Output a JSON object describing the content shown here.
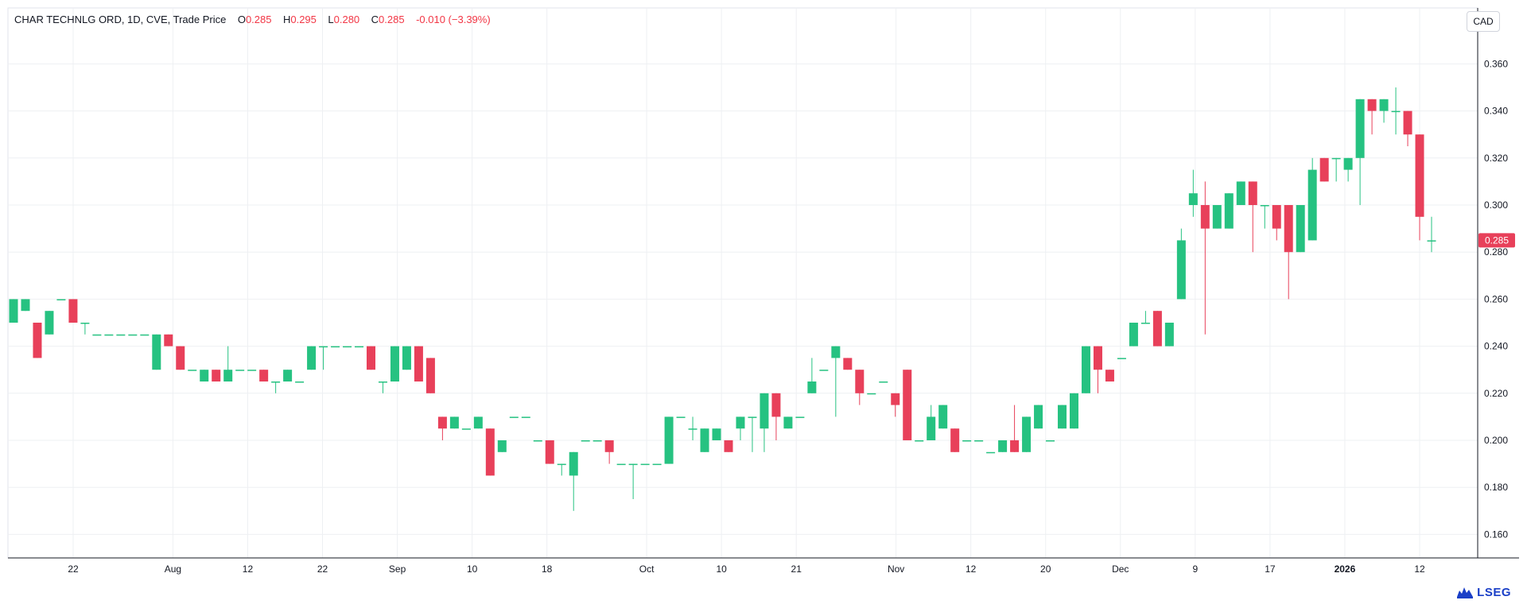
{
  "legend": {
    "symbol": "CHAR TECHNLG ORD, 1D, CVE, Trade Price",
    "open_label": "O",
    "open": "0.285",
    "high_label": "H",
    "high": "0.295",
    "low_label": "L",
    "low": "0.280",
    "close_label": "C",
    "close": "0.285",
    "change": "-0.010 (−3.39%)"
  },
  "currency": "CAD",
  "brand": "LSEG",
  "colors": {
    "up": "#26c281",
    "down": "#e8405a",
    "grid": "#eef0f3",
    "axis": "#131722",
    "label_bg": "#e8405a"
  },
  "chart_data": {
    "type": "candlestick",
    "ylim": [
      0.15,
      0.37
    ],
    "y_ticks": [
      "0.160",
      "0.180",
      "0.200",
      "0.220",
      "0.240",
      "0.260",
      "0.280",
      "0.300",
      "0.320",
      "0.340",
      "0.360"
    ],
    "x_ticks": [
      {
        "label": "22",
        "index": 3
      },
      {
        "label": "Aug",
        "index": 7
      },
      {
        "label": "12",
        "index": 10
      },
      {
        "label": "22",
        "index": 13
      },
      {
        "label": "Sep",
        "index": 16
      },
      {
        "label": "10",
        "index": 19
      },
      {
        "label": "18",
        "index": 22
      },
      {
        "label": "Oct",
        "index": 26
      },
      {
        "label": "10",
        "index": 29
      },
      {
        "label": "21",
        "index": 32
      },
      {
        "label": "Nov",
        "index": 36
      },
      {
        "label": "12",
        "index": 39
      },
      {
        "label": "20",
        "index": 42
      },
      {
        "label": "Dec",
        "index": 45
      },
      {
        "label": "9",
        "index": 48
      },
      {
        "label": "17",
        "index": 51
      },
      {
        "label": "2026",
        "index": 54,
        "bold": true
      },
      {
        "label": "12",
        "index": 57
      }
    ],
    "candles": [
      [
        0.25,
        0.26,
        0.25,
        0.26
      ],
      [
        0.255,
        0.26,
        0.255,
        0.26
      ],
      [
        0.25,
        0.25,
        0.235,
        0.235
      ],
      [
        0.245,
        0.255,
        0.245,
        0.255
      ],
      [
        0.26,
        0.26,
        0.26,
        0.26
      ],
      [
        0.26,
        0.26,
        0.25,
        0.25
      ],
      [
        0.25,
        0.25,
        0.245,
        0.25
      ],
      [
        0.245,
        0.245,
        0.245,
        0.245
      ],
      [
        0.245,
        0.245,
        0.245,
        0.245
      ],
      [
        0.245,
        0.245,
        0.245,
        0.245
      ],
      [
        0.245,
        0.245,
        0.245,
        0.245
      ],
      [
        0.245,
        0.245,
        0.245,
        0.245
      ],
      [
        0.23,
        0.245,
        0.23,
        0.245
      ],
      [
        0.245,
        0.245,
        0.24,
        0.24
      ],
      [
        0.24,
        0.24,
        0.23,
        0.23
      ],
      [
        0.23,
        0.23,
        0.23,
        0.23
      ],
      [
        0.225,
        0.23,
        0.225,
        0.23
      ],
      [
        0.23,
        0.23,
        0.225,
        0.225
      ],
      [
        0.225,
        0.24,
        0.225,
        0.23
      ],
      [
        0.23,
        0.23,
        0.23,
        0.23
      ],
      [
        0.23,
        0.23,
        0.23,
        0.23
      ],
      [
        0.23,
        0.23,
        0.225,
        0.225
      ],
      [
        0.225,
        0.225,
        0.22,
        0.225
      ],
      [
        0.225,
        0.23,
        0.225,
        0.23
      ],
      [
        0.225,
        0.225,
        0.225,
        0.225
      ],
      [
        0.23,
        0.24,
        0.23,
        0.24
      ],
      [
        0.24,
        0.24,
        0.23,
        0.24
      ],
      [
        0.24,
        0.24,
        0.24,
        0.24
      ],
      [
        0.24,
        0.24,
        0.24,
        0.24
      ],
      [
        0.24,
        0.24,
        0.24,
        0.24
      ],
      [
        0.24,
        0.24,
        0.23,
        0.23
      ],
      [
        0.225,
        0.225,
        0.22,
        0.225
      ],
      [
        0.225,
        0.24,
        0.225,
        0.24
      ],
      [
        0.23,
        0.24,
        0.23,
        0.24
      ],
      [
        0.24,
        0.24,
        0.225,
        0.225
      ],
      [
        0.235,
        0.235,
        0.22,
        0.22
      ],
      [
        0.21,
        0.21,
        0.2,
        0.205
      ],
      [
        0.205,
        0.21,
        0.205,
        0.21
      ],
      [
        0.205,
        0.205,
        0.205,
        0.205
      ],
      [
        0.205,
        0.21,
        0.205,
        0.21
      ],
      [
        0.205,
        0.205,
        0.185,
        0.185
      ],
      [
        0.195,
        0.2,
        0.195,
        0.2
      ],
      [
        0.21,
        0.21,
        0.21,
        0.21
      ],
      [
        0.21,
        0.21,
        0.21,
        0.21
      ],
      [
        0.2,
        0.2,
        0.2,
        0.2
      ],
      [
        0.2,
        0.2,
        0.19,
        0.19
      ],
      [
        0.19,
        0.19,
        0.185,
        0.19
      ],
      [
        0.185,
        0.195,
        0.17,
        0.195
      ],
      [
        0.2,
        0.2,
        0.2,
        0.2
      ],
      [
        0.2,
        0.2,
        0.2,
        0.2
      ],
      [
        0.2,
        0.2,
        0.19,
        0.195
      ],
      [
        0.19,
        0.19,
        0.19,
        0.19
      ],
      [
        0.19,
        0.19,
        0.175,
        0.19
      ],
      [
        0.19,
        0.19,
        0.19,
        0.19
      ],
      [
        0.19,
        0.19,
        0.19,
        0.19
      ],
      [
        0.19,
        0.21,
        0.19,
        0.21
      ],
      [
        0.21,
        0.21,
        0.21,
        0.21
      ],
      [
        0.205,
        0.21,
        0.2,
        0.205
      ],
      [
        0.195,
        0.205,
        0.195,
        0.205
      ],
      [
        0.2,
        0.205,
        0.2,
        0.205
      ],
      [
        0.2,
        0.2,
        0.195,
        0.195
      ],
      [
        0.205,
        0.21,
        0.2,
        0.21
      ],
      [
        0.21,
        0.21,
        0.195,
        0.21
      ],
      [
        0.205,
        0.22,
        0.195,
        0.22
      ],
      [
        0.22,
        0.22,
        0.2,
        0.21
      ],
      [
        0.205,
        0.21,
        0.205,
        0.21
      ],
      [
        0.21,
        0.21,
        0.21,
        0.21
      ],
      [
        0.22,
        0.235,
        0.22,
        0.225
      ],
      [
        0.23,
        0.23,
        0.23,
        0.23
      ],
      [
        0.235,
        0.24,
        0.21,
        0.24
      ],
      [
        0.235,
        0.235,
        0.23,
        0.23
      ],
      [
        0.23,
        0.23,
        0.215,
        0.22
      ],
      [
        0.22,
        0.22,
        0.22,
        0.22
      ],
      [
        0.225,
        0.225,
        0.225,
        0.225
      ],
      [
        0.22,
        0.22,
        0.21,
        0.215
      ],
      [
        0.23,
        0.23,
        0.2,
        0.2
      ],
      [
        0.2,
        0.2,
        0.2,
        0.2
      ],
      [
        0.2,
        0.215,
        0.2,
        0.21
      ],
      [
        0.205,
        0.215,
        0.205,
        0.215
      ],
      [
        0.205,
        0.205,
        0.195,
        0.195
      ],
      [
        0.2,
        0.2,
        0.2,
        0.2
      ],
      [
        0.2,
        0.2,
        0.2,
        0.2
      ],
      [
        0.195,
        0.195,
        0.195,
        0.195
      ],
      [
        0.195,
        0.2,
        0.195,
        0.2
      ],
      [
        0.2,
        0.215,
        0.195,
        0.195
      ],
      [
        0.195,
        0.21,
        0.195,
        0.21
      ],
      [
        0.205,
        0.215,
        0.205,
        0.215
      ],
      [
        0.2,
        0.2,
        0.2,
        0.2
      ],
      [
        0.205,
        0.215,
        0.205,
        0.215
      ],
      [
        0.205,
        0.22,
        0.205,
        0.22
      ],
      [
        0.22,
        0.24,
        0.22,
        0.24
      ],
      [
        0.24,
        0.24,
        0.22,
        0.23
      ],
      [
        0.23,
        0.23,
        0.225,
        0.225
      ],
      [
        0.235,
        0.235,
        0.235,
        0.235
      ],
      [
        0.24,
        0.25,
        0.24,
        0.25
      ],
      [
        0.25,
        0.255,
        0.25,
        0.25
      ],
      [
        0.255,
        0.255,
        0.24,
        0.24
      ],
      [
        0.24,
        0.25,
        0.24,
        0.25
      ],
      [
        0.26,
        0.29,
        0.26,
        0.285
      ],
      [
        0.3,
        0.315,
        0.295,
        0.305
      ],
      [
        0.3,
        0.31,
        0.245,
        0.29
      ],
      [
        0.29,
        0.3,
        0.29,
        0.3
      ],
      [
        0.29,
        0.305,
        0.29,
        0.305
      ],
      [
        0.3,
        0.31,
        0.3,
        0.31
      ],
      [
        0.31,
        0.31,
        0.28,
        0.3
      ],
      [
        0.3,
        0.3,
        0.29,
        0.3
      ],
      [
        0.3,
        0.3,
        0.285,
        0.29
      ],
      [
        0.3,
        0.3,
        0.26,
        0.28
      ],
      [
        0.28,
        0.3,
        0.28,
        0.3
      ],
      [
        0.285,
        0.32,
        0.285,
        0.315
      ],
      [
        0.32,
        0.32,
        0.31,
        0.31
      ],
      [
        0.32,
        0.32,
        0.31,
        0.32
      ],
      [
        0.315,
        0.32,
        0.31,
        0.32
      ],
      [
        0.32,
        0.345,
        0.3,
        0.345
      ],
      [
        0.345,
        0.345,
        0.33,
        0.34
      ],
      [
        0.34,
        0.345,
        0.335,
        0.345
      ],
      [
        0.34,
        0.35,
        0.33,
        0.34
      ],
      [
        0.34,
        0.34,
        0.325,
        0.33
      ],
      [
        0.33,
        0.33,
        0.285,
        0.295
      ],
      [
        0.285,
        0.295,
        0.28,
        0.285
      ]
    ],
    "last_price": "0.285"
  }
}
